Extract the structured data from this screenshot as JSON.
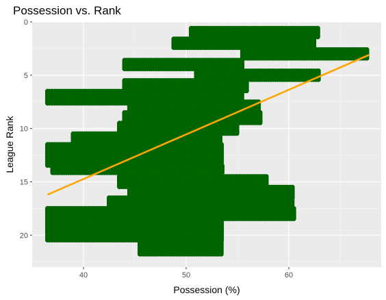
{
  "chart_data": {
    "type": "scatter",
    "title": "Possession vs. Rank",
    "xlabel": "Possession (%)",
    "ylabel": "League Rank",
    "xlim": [
      35,
      69
    ],
    "ylim": [
      0,
      23
    ],
    "y_reversed": true,
    "grid": true,
    "x_ticks": [
      40,
      50,
      60
    ],
    "y_ticks": [
      0,
      5,
      10,
      15,
      20
    ],
    "point_color": "#006400",
    "trend_color": "#FFA500",
    "panel_background": "#EBEBEB",
    "clusters": [
      {
        "x": [
          50.5,
          63.0
        ],
        "y": [
          0.6,
          1.4
        ]
      },
      {
        "x": [
          48.8,
          62.5
        ],
        "y": [
          1.6,
          2.4
        ]
      },
      {
        "x": [
          55.5,
          67.8
        ],
        "y": [
          2.6,
          3.4
        ]
      },
      {
        "x": [
          44.0,
          55.5
        ],
        "y": [
          3.6,
          4.4
        ]
      },
      {
        "x": [
          51.0,
          63.0
        ],
        "y": [
          4.6,
          5.4
        ]
      },
      {
        "x": [
          44.0,
          56.0
        ],
        "y": [
          5.5,
          6.5
        ]
      },
      {
        "x": [
          36.5,
          55.5
        ],
        "y": [
          6.5,
          7.7
        ]
      },
      {
        "x": [
          44.5,
          57.2
        ],
        "y": [
          7.5,
          8.5
        ]
      },
      {
        "x": [
          44.0,
          57.2
        ],
        "y": [
          8.5,
          9.5
        ]
      },
      {
        "x": [
          43.5,
          55.0
        ],
        "y": [
          9.5,
          10.5
        ]
      },
      {
        "x": [
          39.0,
          53.5
        ],
        "y": [
          10.5,
          11.5
        ]
      },
      {
        "x": [
          36.5,
          53.5
        ],
        "y": [
          11.5,
          12.5
        ]
      },
      {
        "x": [
          36.5,
          53.5
        ],
        "y": [
          12.5,
          13.5
        ]
      },
      {
        "x": [
          37.0,
          53.5
        ],
        "y": [
          13.5,
          14.2
        ]
      },
      {
        "x": [
          43.5,
          58.0
        ],
        "y": [
          14.5,
          15.5
        ]
      },
      {
        "x": [
          44.5,
          60.5
        ],
        "y": [
          15.5,
          16.5
        ]
      },
      {
        "x": [
          42.5,
          60.5
        ],
        "y": [
          16.5,
          17.5
        ]
      },
      {
        "x": [
          36.5,
          60.5
        ],
        "y": [
          17.5,
          18.5
        ]
      },
      {
        "x": [
          36.5,
          53.5
        ],
        "y": [
          18.5,
          19.5
        ]
      },
      {
        "x": [
          36.5,
          53.5
        ],
        "y": [
          19.5,
          20.5
        ]
      },
      {
        "x": [
          45.5,
          53.5
        ],
        "y": [
          20.5,
          21.8
        ]
      }
    ],
    "trend_line": {
      "x": [
        36.5,
        67.8
      ],
      "y": [
        16.2,
        3.1
      ]
    }
  }
}
